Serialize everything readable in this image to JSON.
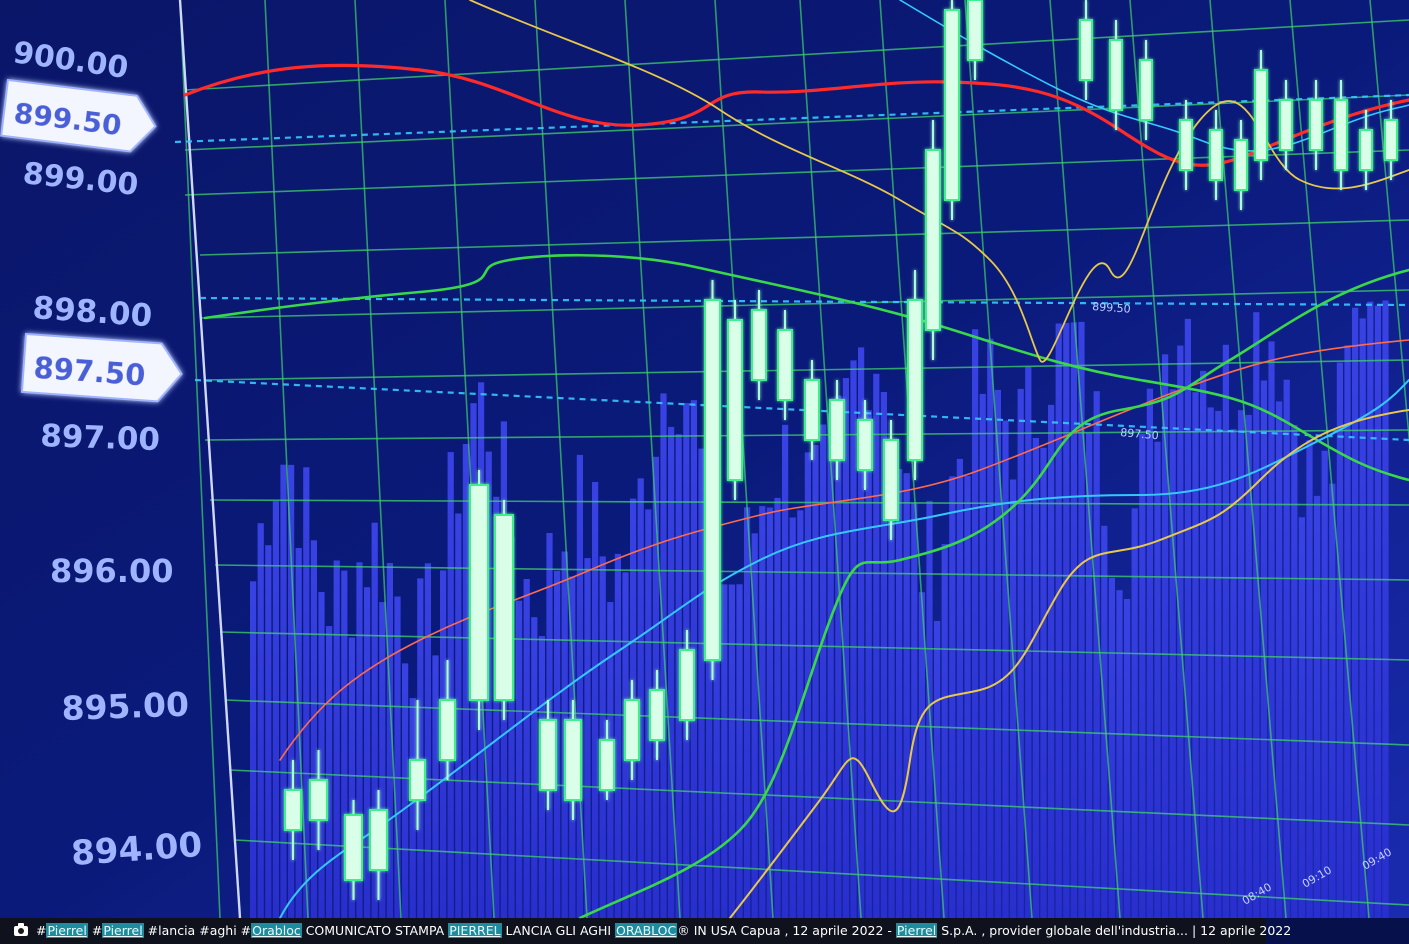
{
  "chart_data": {
    "type": "candlestick",
    "y_tick_labels": [
      "900.00",
      "899.00",
      "898.00",
      "897.00",
      "896.00",
      "895.00",
      "894.00"
    ],
    "highlighted_levels": [
      "899.50",
      "897.50"
    ],
    "line_tags": [
      "899.50",
      "897.50"
    ],
    "time_labels": [
      "08:40",
      "09:10",
      "09:40"
    ],
    "colors": {
      "background": "#06104a",
      "grid": "#3fd16a",
      "candles": "#a8ffd6",
      "volume_bars": "#3b3fe0",
      "red_line": "#ff2a2a",
      "green_line": "#39d84a",
      "yellow_line": "#e8c84a",
      "cyan_line": "#35c8ff",
      "label_text": "#9fb4ff"
    }
  },
  "caption": {
    "camera_icon": "camera-icon",
    "tags": [
      {
        "prefix": "#",
        "text": "Pierrel"
      },
      {
        "prefix": "#",
        "text": "Pierrel"
      },
      {
        "prefix": "#",
        "text": "lancia"
      },
      {
        "prefix": "#",
        "text": "aghi"
      },
      {
        "prefix": "#",
        "text": "Orabloc"
      }
    ],
    "text_1": " COMUNICATO STAMPA ",
    "link_1": "PIERREL",
    "text_2": " LANCIA GLI AGHI ",
    "link_2": "ORABLOC",
    "text_3": "® IN USA Capua , 12 aprile 2022 - ",
    "link_3": "Pierrel",
    "text_4": " S.p.A. , provider globale dell'industria... | 12 aprile 2022"
  }
}
